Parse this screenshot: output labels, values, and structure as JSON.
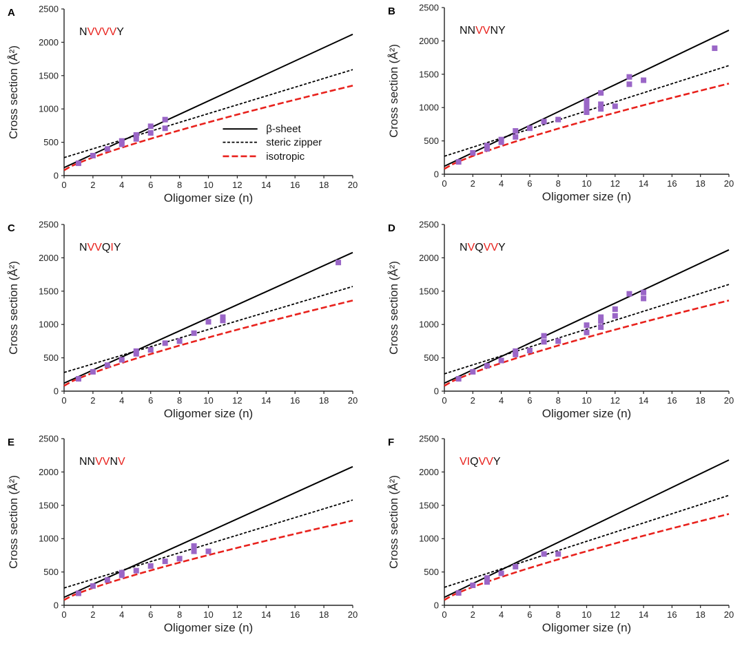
{
  "chart_data": [
    {
      "type": "scatter",
      "panel": "A",
      "sequence": [
        {
          "t": "N",
          "red": false
        },
        {
          "t": "VVVV",
          "red": true
        },
        {
          "t": "Y",
          "red": false
        }
      ],
      "xlabel": "Oligomer size (n)",
      "ylabel": "Cross section (Å²)",
      "xlim": [
        0,
        20
      ],
      "ylim": [
        0,
        2500
      ],
      "xticks": [
        0,
        2,
        4,
        6,
        8,
        10,
        12,
        14,
        16,
        18,
        20
      ],
      "yticks": [
        0,
        500,
        1000,
        1500,
        2000,
        2500
      ],
      "points": [
        [
          1,
          185
        ],
        [
          2,
          300
        ],
        [
          3,
          400
        ],
        [
          4,
          470
        ],
        [
          4,
          520
        ],
        [
          5,
          550
        ],
        [
          5,
          610
        ],
        [
          6,
          640
        ],
        [
          6,
          740
        ],
        [
          7,
          710
        ],
        [
          7,
          840
        ]
      ],
      "lines": {
        "beta_sheet": [
          [
            0,
            120
          ],
          [
            20,
            2120
          ]
        ],
        "steric_zipper": [
          [
            0,
            270
          ],
          [
            20,
            1590
          ]
        ],
        "isotropic": [
          [
            0,
            80
          ],
          [
            20,
            1350
          ]
        ]
      },
      "legend": {
        "beta_sheet": "β-sheet",
        "steric_zipper": "steric zipper",
        "isotropic": "isotropic"
      }
    },
    {
      "type": "scatter",
      "panel": "B",
      "sequence": [
        {
          "t": "NN",
          "red": false
        },
        {
          "t": "VV",
          "red": true
        },
        {
          "t": "NY",
          "red": false
        }
      ],
      "xlabel": "Oligomer size (n)",
      "ylabel": "Cross section (Å²)",
      "xlim": [
        0,
        20
      ],
      "ylim": [
        0,
        2500
      ],
      "xticks": [
        0,
        2,
        4,
        6,
        8,
        10,
        12,
        14,
        16,
        18,
        20
      ],
      "yticks": [
        0,
        500,
        1000,
        1500,
        2000,
        2500
      ],
      "points": [
        [
          1,
          185
        ],
        [
          2,
          320
        ],
        [
          3,
          380
        ],
        [
          3,
          430
        ],
        [
          4,
          480
        ],
        [
          4,
          520
        ],
        [
          5,
          560
        ],
        [
          5,
          650
        ],
        [
          6,
          690
        ],
        [
          7,
          790
        ],
        [
          8,
          820
        ],
        [
          10,
          930
        ],
        [
          10,
          1000
        ],
        [
          10,
          1060
        ],
        [
          10,
          1100
        ],
        [
          11,
          980
        ],
        [
          11,
          1050
        ],
        [
          11,
          1220
        ],
        [
          12,
          1020
        ],
        [
          13,
          1350
        ],
        [
          13,
          1460
        ],
        [
          14,
          1410
        ],
        [
          19,
          1890
        ]
      ],
      "lines": {
        "beta_sheet": [
          [
            0,
            120
          ],
          [
            20,
            2160
          ]
        ],
        "steric_zipper": [
          [
            0,
            270
          ],
          [
            20,
            1630
          ]
        ],
        "isotropic": [
          [
            0,
            80
          ],
          [
            20,
            1360
          ]
        ]
      }
    },
    {
      "type": "scatter",
      "panel": "C",
      "sequence": [
        {
          "t": "N",
          "red": false
        },
        {
          "t": "VV",
          "red": true
        },
        {
          "t": "Q",
          "red": false
        },
        {
          "t": "I",
          "red": true
        },
        {
          "t": "Y",
          "red": false
        }
      ],
      "xlabel": "Oligomer size (n)",
      "ylabel": "Cross section (Å²)",
      "xlim": [
        0,
        20
      ],
      "ylim": [
        0,
        2500
      ],
      "xticks": [
        0,
        2,
        4,
        6,
        8,
        10,
        12,
        14,
        16,
        18,
        20
      ],
      "yticks": [
        0,
        500,
        1000,
        1500,
        2000,
        2500
      ],
      "points": [
        [
          1,
          185
        ],
        [
          2,
          290
        ],
        [
          3,
          390
        ],
        [
          4,
          470
        ],
        [
          5,
          560
        ],
        [
          5,
          600
        ],
        [
          6,
          620
        ],
        [
          7,
          720
        ],
        [
          8,
          750
        ],
        [
          9,
          870
        ],
        [
          10,
          1040
        ],
        [
          11,
          1060
        ],
        [
          11,
          1110
        ],
        [
          19,
          1930
        ]
      ],
      "lines": {
        "beta_sheet": [
          [
            0,
            120
          ],
          [
            20,
            2080
          ]
        ],
        "steric_zipper": [
          [
            0,
            280
          ],
          [
            20,
            1570
          ]
        ],
        "isotropic": [
          [
            0,
            80
          ],
          [
            20,
            1360
          ]
        ]
      }
    },
    {
      "type": "scatter",
      "panel": "D",
      "sequence": [
        {
          "t": "N",
          "red": false
        },
        {
          "t": "V",
          "red": true
        },
        {
          "t": "Q",
          "red": false
        },
        {
          "t": "VV",
          "red": true
        },
        {
          "t": "Y",
          "red": false
        }
      ],
      "xlabel": "Oligomer size (n)",
      "ylabel": "Cross section (Å²)",
      "xlim": [
        0,
        20
      ],
      "ylim": [
        0,
        2500
      ],
      "xticks": [
        0,
        2,
        4,
        6,
        8,
        10,
        12,
        14,
        16,
        18,
        20
      ],
      "yticks": [
        0,
        500,
        1000,
        1500,
        2000,
        2500
      ],
      "points": [
        [
          1,
          185
        ],
        [
          2,
          290
        ],
        [
          3,
          380
        ],
        [
          4,
          460
        ],
        [
          5,
          550
        ],
        [
          5,
          600
        ],
        [
          6,
          610
        ],
        [
          7,
          740
        ],
        [
          7,
          830
        ],
        [
          8,
          750
        ],
        [
          10,
          880
        ],
        [
          10,
          990
        ],
        [
          11,
          960
        ],
        [
          11,
          1050
        ],
        [
          11,
          1110
        ],
        [
          12,
          1130
        ],
        [
          12,
          1230
        ],
        [
          13,
          1460
        ],
        [
          14,
          1390
        ],
        [
          14,
          1480
        ]
      ],
      "lines": {
        "beta_sheet": [
          [
            0,
            120
          ],
          [
            20,
            2120
          ]
        ],
        "steric_zipper": [
          [
            0,
            260
          ],
          [
            20,
            1600
          ]
        ],
        "isotropic": [
          [
            0,
            80
          ],
          [
            20,
            1360
          ]
        ]
      }
    },
    {
      "type": "scatter",
      "panel": "E",
      "sequence": [
        {
          "t": "NN",
          "red": false
        },
        {
          "t": "VV",
          "red": true
        },
        {
          "t": "N",
          "red": false
        },
        {
          "t": "V",
          "red": true
        }
      ],
      "xlabel": "Oligomer size (n)",
      "ylabel": "Cross section (Å²)",
      "xlim": [
        0,
        20
      ],
      "ylim": [
        0,
        2500
      ],
      "xticks": [
        0,
        2,
        4,
        6,
        8,
        10,
        12,
        14,
        16,
        18,
        20
      ],
      "yticks": [
        0,
        500,
        1000,
        1500,
        2000,
        2500
      ],
      "points": [
        [
          1,
          180
        ],
        [
          2,
          290
        ],
        [
          3,
          380
        ],
        [
          4,
          450
        ],
        [
          4,
          490
        ],
        [
          5,
          520
        ],
        [
          6,
          590
        ],
        [
          7,
          660
        ],
        [
          8,
          700
        ],
        [
          9,
          810
        ],
        [
          9,
          890
        ],
        [
          10,
          810
        ]
      ],
      "lines": {
        "beta_sheet": [
          [
            0,
            120
          ],
          [
            20,
            2080
          ]
        ],
        "steric_zipper": [
          [
            0,
            260
          ],
          [
            20,
            1580
          ]
        ],
        "isotropic": [
          [
            0,
            80
          ],
          [
            20,
            1270
          ]
        ]
      }
    },
    {
      "type": "scatter",
      "panel": "F",
      "sequence": [
        {
          "t": "VI",
          "red": true
        },
        {
          "t": "Q",
          "red": false
        },
        {
          "t": "VV",
          "red": true
        },
        {
          "t": "Y",
          "red": false
        }
      ],
      "xlabel": "Oligomer size (n)",
      "ylabel": "Cross section (Å²)",
      "xlim": [
        0,
        20
      ],
      "ylim": [
        0,
        2500
      ],
      "xticks": [
        0,
        2,
        4,
        6,
        8,
        10,
        12,
        14,
        16,
        18,
        20
      ],
      "yticks": [
        0,
        500,
        1000,
        1500,
        2000,
        2500
      ],
      "points": [
        [
          1,
          185
        ],
        [
          2,
          300
        ],
        [
          3,
          350
        ],
        [
          3,
          410
        ],
        [
          4,
          480
        ],
        [
          5,
          580
        ],
        [
          7,
          770
        ],
        [
          8,
          770
        ]
      ],
      "lines": {
        "beta_sheet": [
          [
            0,
            120
          ],
          [
            20,
            2180
          ]
        ],
        "steric_zipper": [
          [
            0,
            270
          ],
          [
            20,
            1650
          ]
        ],
        "isotropic": [
          [
            0,
            80
          ],
          [
            20,
            1370
          ]
        ]
      }
    }
  ],
  "colors": {
    "beta_sheet": "#000000",
    "steric_zipper": "#000000",
    "isotropic": "#e8211c",
    "points": "#9a66c7",
    "sequence_red": "#e8211c",
    "sequence_black": "#111111",
    "axis": "#222222"
  }
}
